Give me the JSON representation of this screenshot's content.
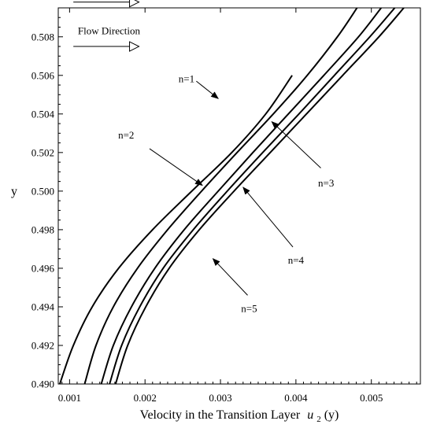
{
  "chart_data": {
    "type": "line",
    "title": "",
    "xlabel": "Velocity in the Transition Layer",
    "xlabel_math_symbol": "u",
    "xlabel_math_sub": "2",
    "xlabel_math_arg": "(y)",
    "ylabel": "y",
    "xlim": [
      0.00085,
      0.00565
    ],
    "ylim": [
      0.49,
      0.5095
    ],
    "xticks": [
      0.001,
      0.002,
      0.003,
      0.004,
      0.005
    ],
    "xtick_labels": [
      "0.001",
      "0.002",
      "0.003",
      "0.004",
      "0.005"
    ],
    "yticks": [
      0.49,
      0.492,
      0.494,
      0.496,
      0.498,
      0.5,
      0.502,
      0.504,
      0.506,
      0.508
    ],
    "ytick_labels": [
      "0.490",
      "0.492",
      "0.494",
      "0.496",
      "0.498",
      "0.500",
      "0.502",
      "0.504",
      "0.506",
      "0.508"
    ],
    "grid": false,
    "legend": "none",
    "line_color": "#000000",
    "series": [
      {
        "name": "n=1",
        "x": [
          0.00087,
          0.00105,
          0.0013,
          0.00165,
          0.0021,
          0.00262,
          0.00315,
          0.0036,
          0.00395
        ],
        "y": [
          0.49,
          0.492,
          0.494,
          0.496,
          0.498,
          0.5,
          0.502,
          0.504,
          0.506
        ]
      },
      {
        "name": "n=2",
        "x": [
          0.0012,
          0.00135,
          0.00158,
          0.0019,
          0.0023,
          0.00275,
          0.00322,
          0.0037,
          0.00415,
          0.00455,
          0.00481
        ],
        "y": [
          0.49,
          0.492,
          0.494,
          0.496,
          0.498,
          0.5,
          0.502,
          0.504,
          0.506,
          0.508,
          0.5095
        ]
      },
      {
        "name": "n=3",
        "x": [
          0.00142,
          0.00158,
          0.00182,
          0.00213,
          0.00252,
          0.00297,
          0.00343,
          0.0039,
          0.00437,
          0.00483,
          0.00513
        ],
        "y": [
          0.49,
          0.492,
          0.494,
          0.496,
          0.498,
          0.5,
          0.502,
          0.504,
          0.506,
          0.508,
          0.5095
        ]
      },
      {
        "name": "n=4",
        "x": [
          0.00153,
          0.00169,
          0.00193,
          0.00224,
          0.00264,
          0.00309,
          0.00356,
          0.00404,
          0.00451,
          0.00498,
          0.00531
        ],
        "y": [
          0.49,
          0.492,
          0.494,
          0.496,
          0.498,
          0.5,
          0.502,
          0.504,
          0.506,
          0.508,
          0.5095
        ]
      },
      {
        "name": "n=5",
        "x": [
          0.00161,
          0.00177,
          0.00201,
          0.00232,
          0.00272,
          0.00318,
          0.00366,
          0.00414,
          0.00462,
          0.0051,
          0.00543
        ],
        "y": [
          0.49,
          0.492,
          0.494,
          0.496,
          0.498,
          0.5,
          0.502,
          0.504,
          0.506,
          0.508,
          0.5095
        ]
      }
    ],
    "annotations": [
      {
        "text": "n=1",
        "label_at": [
          0.00255,
          0.5058
        ],
        "arrow_from": [
          0.00268,
          0.5057
        ],
        "arrow_to": [
          0.00297,
          0.5048
        ]
      },
      {
        "text": "n=2",
        "label_at": [
          0.00175,
          0.5029
        ],
        "arrow_from": [
          0.00206,
          0.5022
        ],
        "arrow_to": [
          0.00276,
          0.5003
        ]
      },
      {
        "text": "n=3",
        "label_at": [
          0.0044,
          0.5004
        ],
        "arrow_from": [
          0.00433,
          0.5012
        ],
        "arrow_to": [
          0.00368,
          0.5036
        ]
      },
      {
        "text": "n=4",
        "label_at": [
          0.004,
          0.4964
        ],
        "arrow_from": [
          0.00396,
          0.4971
        ],
        "arrow_to": [
          0.0033,
          0.5002
        ]
      },
      {
        "text": "n=5",
        "label_at": [
          0.00338,
          0.4939
        ],
        "arrow_from": [
          0.00336,
          0.4946
        ],
        "arrow_to": [
          0.0029,
          0.4965
        ]
      }
    ],
    "flow_direction": {
      "label": "Flow Direction",
      "label_at": [
        0.00111,
        0.5083
      ],
      "arrow1_y": 0.5098,
      "arrow2_y": 0.5075,
      "arrow_x": [
        0.00105,
        0.00192
      ]
    }
  }
}
